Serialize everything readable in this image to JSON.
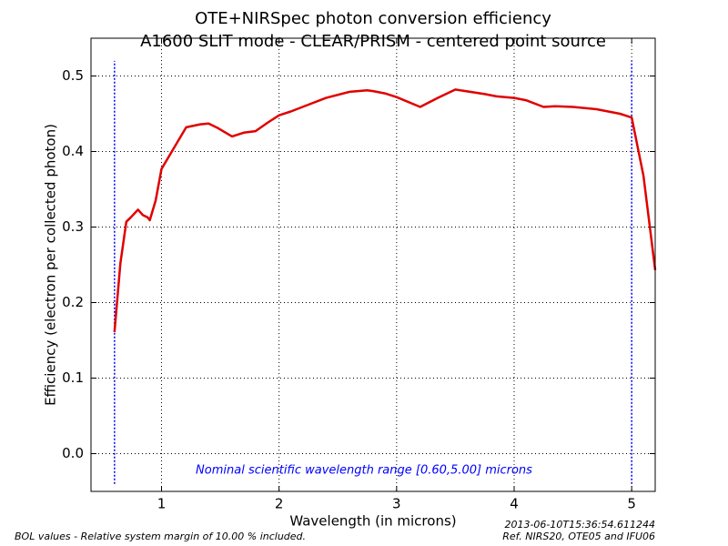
{
  "chart_data": {
    "type": "line",
    "title": [
      "OTE+NIRSpec photon conversion efficiency",
      "A1600 SLIT mode - CLEAR/PRISM - centered point source"
    ],
    "xlabel": "Wavelength (in microns)",
    "ylabel": "Efficiency (electron per collected photon)",
    "annotation": "Nominal scientific wavelength range [0.60,5.00] microns",
    "footer_left": "BOL values - Relative system margin of 10.00 % included.",
    "footer_right": [
      "2013-06-10T15:36:54.611244",
      "Ref. NIRS20, OTE05 and IFU06"
    ],
    "x": [
      0.6,
      0.65,
      0.7,
      0.74,
      0.8,
      0.84,
      0.88,
      0.9,
      0.95,
      1.0,
      1.08,
      1.21,
      1.33,
      1.4,
      1.48,
      1.6,
      1.7,
      1.8,
      1.9,
      2.0,
      2.1,
      2.25,
      2.4,
      2.6,
      2.75,
      2.8,
      2.9,
      3.0,
      3.2,
      3.35,
      3.5,
      3.75,
      3.85,
      4.0,
      4.1,
      4.25,
      4.35,
      4.5,
      4.7,
      4.9,
      5.0,
      5.1,
      5.2
    ],
    "series": [
      {
        "color": "#e00000",
        "values": [
          0.161,
          0.252,
          0.307,
          0.313,
          0.323,
          0.316,
          0.313,
          0.309,
          0.335,
          0.377,
          0.398,
          0.432,
          0.436,
          0.437,
          0.431,
          0.42,
          0.425,
          0.427,
          0.438,
          0.448,
          0.453,
          0.462,
          0.471,
          0.479,
          0.481,
          0.48,
          0.477,
          0.472,
          0.459,
          0.471,
          0.482,
          0.476,
          0.473,
          0.471,
          0.468,
          0.459,
          0.46,
          0.459,
          0.456,
          0.45,
          0.445,
          0.368,
          0.243
        ]
      }
    ],
    "vlines": [
      0.6,
      5.0
    ],
    "vline_color": "#0000ff",
    "vline_ylim": [
      -0.04,
      0.52
    ],
    "xlim": [
      0.4,
      5.2
    ],
    "ylim": [
      -0.05,
      0.55
    ],
    "xticks": [
      1,
      2,
      3,
      4,
      5
    ],
    "yticks": [
      {
        "value": 0,
        "label": "0.0"
      },
      0.1,
      0.2,
      0.3,
      0.4,
      0.5
    ],
    "grid": true
  }
}
